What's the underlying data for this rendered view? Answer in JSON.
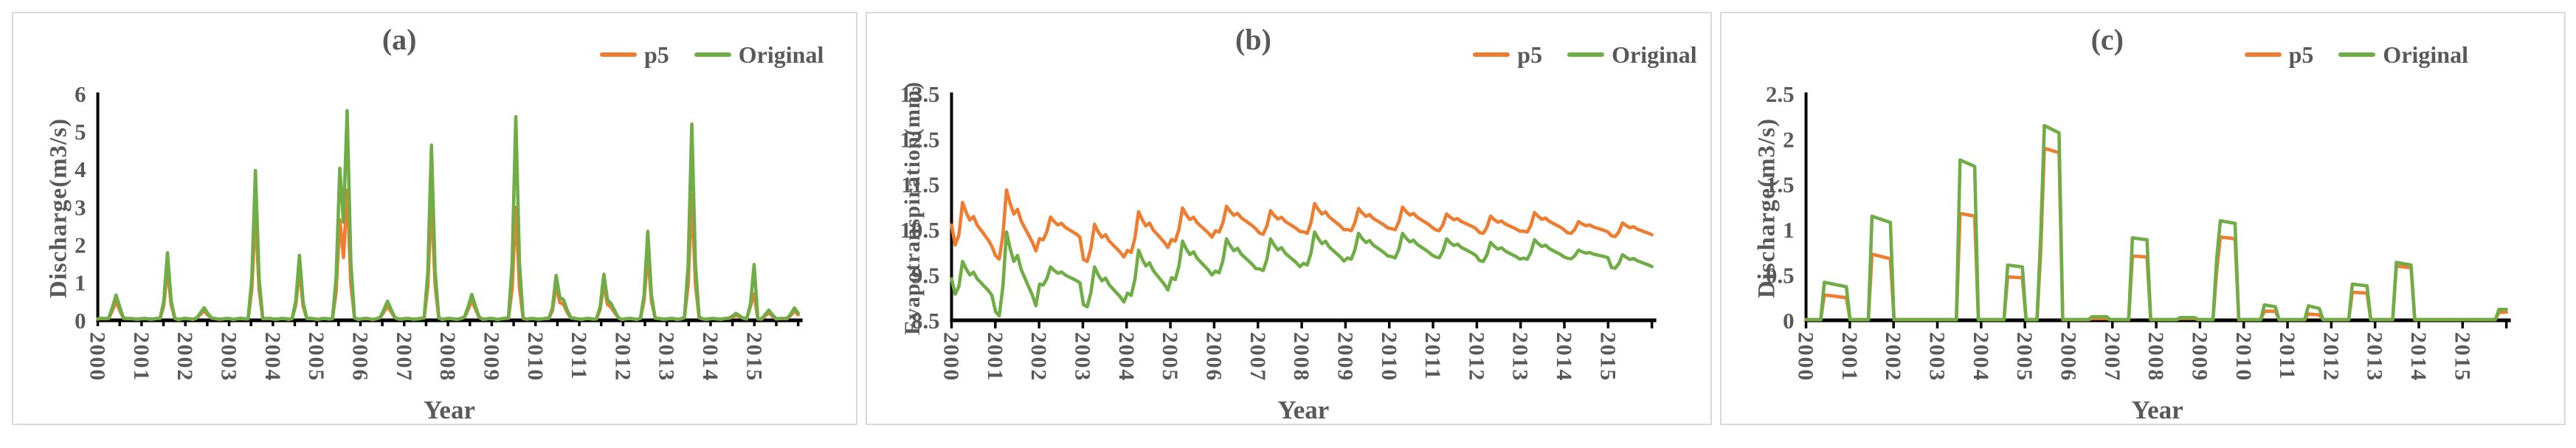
{
  "colors": {
    "p5": "#ED7D31",
    "Original": "#70AD47",
    "text": "#595959",
    "axis": "#000000",
    "panel_border": "#d9d9d9",
    "background": "#ffffff"
  },
  "legend": {
    "items": [
      {
        "label": "p5",
        "color_key": "p5"
      },
      {
        "label": "Original",
        "color_key": "Original"
      }
    ]
  },
  "years": [
    "2000",
    "2001",
    "2002",
    "2003",
    "2004",
    "2005",
    "2006",
    "2007",
    "2008",
    "2009",
    "2010",
    "2011",
    "2012",
    "2013",
    "2014",
    "2015"
  ],
  "chart_data": [
    {
      "type": "line",
      "id": "a",
      "model": "spikes",
      "title": "(a)",
      "ylabel": "Discharge(m3/s)",
      "xlabel": "Year",
      "ylim": [
        0,
        6
      ],
      "yticks": [
        "0",
        "1",
        "2",
        "3",
        "4",
        "5",
        "6"
      ],
      "x_minor_ticks_per_year": 2,
      "legend_entries": [
        "p5",
        "Original"
      ],
      "grid": false,
      "baseline": 0.03,
      "peaks_by_year": [
        {
          "year": 2000,
          "events": [
            {
              "month": 5,
              "Original": 0.62,
              "p5": 0.45
            }
          ]
        },
        {
          "year": 2001,
          "events": [
            {
              "month": 7,
              "Original": 1.75,
              "p5": 1.35
            }
          ]
        },
        {
          "year": 2002,
          "events": [
            {
              "month": 5,
              "Original": 0.3,
              "p5": 0.22
            }
          ]
        },
        {
          "year": 2003,
          "events": [
            {
              "month": 7,
              "Original": 3.92,
              "p5": 2.85
            }
          ]
        },
        {
          "year": 2004,
          "events": [
            {
              "month": 7,
              "Original": 1.68,
              "p5": 1.3
            }
          ]
        },
        {
          "year": 2005,
          "events": [
            {
              "month": 6,
              "Original": 3.95,
              "p5": 2.6
            },
            {
              "month": 8,
              "Original": 5.5,
              "p5": 3.4
            }
          ]
        },
        {
          "year": 2006,
          "events": [
            {
              "month": 7,
              "Original": 0.48,
              "p5": 0.35
            }
          ]
        },
        {
          "year": 2007,
          "events": [
            {
              "month": 7,
              "Original": 4.6,
              "p5": 3.2
            }
          ]
        },
        {
          "year": 2008,
          "events": [
            {
              "month": 6,
              "Original": 0.65,
              "p5": 0.5
            }
          ]
        },
        {
          "year": 2009,
          "events": [
            {
              "month": 6,
              "Original": 5.35,
              "p5": 2.95
            }
          ]
        },
        {
          "year": 2010,
          "events": [
            {
              "month": 5,
              "Original": 1.12,
              "p5": 0.85
            },
            {
              "month": 7,
              "Original": 0.5,
              "p5": 0.38
            }
          ]
        },
        {
          "year": 2011,
          "events": [
            {
              "month": 6,
              "Original": 1.15,
              "p5": 0.9
            },
            {
              "month": 8,
              "Original": 0.4,
              "p5": 0.3
            }
          ]
        },
        {
          "year": 2012,
          "events": [
            {
              "month": 6,
              "Original": 2.32,
              "p5": 1.75
            }
          ]
        },
        {
          "year": 2013,
          "events": [
            {
              "month": 6,
              "Original": 5.18,
              "p5": 3.3
            }
          ]
        },
        {
          "year": 2014,
          "events": [
            {
              "month": 6,
              "Original": 0.15,
              "p5": 0.1
            },
            {
              "month": 11,
              "Original": 1.43,
              "p5": 0.65
            }
          ]
        },
        {
          "year": 2015,
          "events": [
            {
              "month": 3,
              "Original": 0.22,
              "p5": 0.15
            },
            {
              "month": 10,
              "Original": 0.28,
              "p5": 0.2
            }
          ]
        }
      ]
    },
    {
      "type": "line",
      "id": "b",
      "model": "seasonal",
      "title": "(b)",
      "ylabel": "Evapotranspiration(mm)",
      "xlabel": "Year",
      "ylim": [
        8.5,
        13.5
      ],
      "yticks": [
        "8.5",
        "9.5",
        "10.5",
        "11.5",
        "12.5",
        "13.5"
      ],
      "x_minor_ticks_per_year": 1,
      "legend_entries": [
        "p5",
        "Original"
      ],
      "grid": false,
      "season_shape": [
        0.05,
        0.0,
        0.35,
        1.0,
        0.8,
        0.65,
        0.72,
        0.55,
        0.45,
        0.35,
        0.25,
        0.12
      ],
      "first_year_start_shape": [
        0.55,
        0.15
      ],
      "annual_cycle": [
        {
          "year": 2000,
          "p5": {
            "trough": 10.0,
            "peak": 11.1
          },
          "Original": {
            "trough": 8.95,
            "peak": 9.8
          }
        },
        {
          "year": 2001,
          "p5": {
            "trough": 9.85,
            "peak": 11.38
          },
          "Original": {
            "trough": 8.6,
            "peak": 10.45
          }
        },
        {
          "year": 2002,
          "p5": {
            "trough": 10.28,
            "peak": 10.78
          },
          "Original": {
            "trough": 9.28,
            "peak": 9.68
          }
        },
        {
          "year": 2003,
          "p5": {
            "trough": 9.8,
            "peak": 10.62
          },
          "Original": {
            "trough": 8.8,
            "peak": 9.68
          }
        },
        {
          "year": 2004,
          "p5": {
            "trough": 10.0,
            "peak": 10.9
          },
          "Original": {
            "trough": 9.05,
            "peak": 10.05
          }
        },
        {
          "year": 2005,
          "p5": {
            "trough": 10.25,
            "peak": 10.98
          },
          "Original": {
            "trough": 9.4,
            "peak": 10.25
          }
        },
        {
          "year": 2006,
          "p5": {
            "trough": 10.45,
            "peak": 11.02
          },
          "Original": {
            "trough": 9.55,
            "peak": 10.3
          }
        },
        {
          "year": 2007,
          "p5": {
            "trough": 10.4,
            "peak": 10.92
          },
          "Original": {
            "trough": 9.6,
            "peak": 10.3
          }
        },
        {
          "year": 2008,
          "p5": {
            "trough": 10.42,
            "peak": 11.08
          },
          "Original": {
            "trough": 9.72,
            "peak": 10.45
          }
        },
        {
          "year": 2009,
          "p5": {
            "trough": 10.48,
            "peak": 10.97
          },
          "Original": {
            "trough": 9.85,
            "peak": 10.42
          }
        },
        {
          "year": 2010,
          "p5": {
            "trough": 10.5,
            "peak": 11.0
          },
          "Original": {
            "trough": 9.88,
            "peak": 10.42
          }
        },
        {
          "year": 2011,
          "p5": {
            "trough": 10.48,
            "peak": 10.85
          },
          "Original": {
            "trough": 9.88,
            "peak": 10.3
          }
        },
        {
          "year": 2012,
          "p5": {
            "trough": 10.42,
            "peak": 10.8
          },
          "Original": {
            "trough": 9.8,
            "peak": 10.22
          }
        },
        {
          "year": 2013,
          "p5": {
            "trough": 10.45,
            "peak": 10.88
          },
          "Original": {
            "trough": 9.85,
            "peak": 10.28
          }
        },
        {
          "year": 2014,
          "p5": {
            "trough": 10.42,
            "peak": 10.68
          },
          "Original": {
            "trough": 9.86,
            "peak": 10.05
          }
        },
        {
          "year": 2015,
          "p5": {
            "trough": 10.35,
            "peak": 10.65
          },
          "Original": {
            "trough": 9.65,
            "peak": 9.95
          }
        }
      ]
    },
    {
      "type": "line",
      "id": "c",
      "model": "pulses",
      "title": "(c)",
      "ylabel": "Discharge(m3/s)",
      "xlabel": "Year",
      "ylim": [
        0,
        2.5
      ],
      "yticks": [
        "0",
        "0.5",
        "1",
        "1.5",
        "2",
        "2.5"
      ],
      "x_minor_ticks_per_year": 1,
      "legend_entries": [
        "p5",
        "Original"
      ],
      "grid": false,
      "baseline": 0.008,
      "pulses": [
        {
          "year": 2000,
          "m0": 5,
          "m1": 11,
          "Original": [
            0.42,
            0.37
          ],
          "p5": [
            0.28,
            0.25
          ]
        },
        {
          "year": 2001,
          "m0": 6,
          "m1": 11,
          "Original": [
            1.15,
            1.08
          ],
          "p5": [
            0.73,
            0.68
          ]
        },
        {
          "year": 2003,
          "m0": 6,
          "m1": 10,
          "Original": [
            1.77,
            1.7
          ],
          "p5": [
            1.18,
            1.15
          ]
        },
        {
          "year": 2004,
          "m0": 7,
          "m1": 11,
          "Original": [
            0.61,
            0.59
          ],
          "p5": [
            0.48,
            0.47
          ]
        },
        {
          "year": 2005,
          "m0": 5,
          "m1": 9,
          "Original": [
            2.15,
            2.07
          ],
          "p5": [
            1.9,
            1.85
          ],
          "pre": {
            "m": 4,
            "Original": 0.92,
            "p5": 0.75
          }
        },
        {
          "year": 2006,
          "m0": 6,
          "m1": 10,
          "Original": [
            0.04,
            0.04
          ],
          "p5": [
            0.02,
            0.02
          ]
        },
        {
          "year": 2007,
          "m0": 5,
          "m1": 9,
          "Original": [
            0.91,
            0.89
          ],
          "p5": [
            0.71,
            0.7
          ]
        },
        {
          "year": 2008,
          "m0": 6,
          "m1": 10,
          "Original": [
            0.03,
            0.03
          ],
          "p5": [
            0.02,
            0.02
          ]
        },
        {
          "year": 2009,
          "m0": 5,
          "m1": 9,
          "Original": [
            1.1,
            1.07
          ],
          "p5": [
            0.92,
            0.9
          ],
          "pre": {
            "m": 4,
            "Original": 0.68,
            "p5": 0.55
          }
        },
        {
          "year": 2010,
          "m0": 5,
          "m1": 8,
          "Original": [
            0.17,
            0.15
          ],
          "p5": [
            0.1,
            0.1
          ]
        },
        {
          "year": 2011,
          "m0": 5,
          "m1": 8,
          "Original": [
            0.16,
            0.13
          ],
          "p5": [
            0.07,
            0.06
          ]
        },
        {
          "year": 2012,
          "m0": 5,
          "m1": 9,
          "Original": [
            0.4,
            0.38
          ],
          "p5": [
            0.31,
            0.3
          ]
        },
        {
          "year": 2013,
          "m0": 5,
          "m1": 9,
          "Original": [
            0.64,
            0.61
          ],
          "p5": [
            0.6,
            0.58
          ]
        },
        {
          "year": 2015,
          "m0": 9,
          "m1": 11,
          "Original": [
            0.12,
            0.12
          ],
          "p5": [
            0.09,
            0.09
          ]
        }
      ]
    }
  ]
}
